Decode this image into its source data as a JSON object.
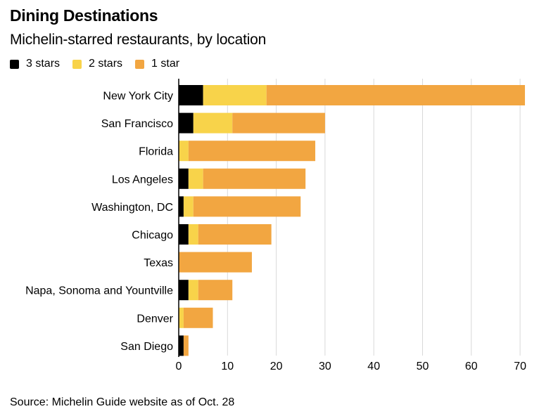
{
  "title": "Dining Destinations",
  "subtitle": "Michelin-starred restaurants, by location",
  "source": "Source: Michelin Guide website as of Oct. 28",
  "chart_data": {
    "type": "bar",
    "orientation": "horizontal",
    "stacked": true,
    "categories": [
      "New York City",
      "San Francisco",
      "Florida",
      "Los Angeles",
      "Washington, DC",
      "Chicago",
      "Texas",
      "Napa, Sonoma and Yountville",
      "Denver",
      "San Diego"
    ],
    "series": [
      {
        "name": "3 stars",
        "color": "#000000",
        "values": [
          5,
          3,
          0,
          2,
          1,
          2,
          0,
          2,
          0,
          1
        ]
      },
      {
        "name": "2 stars",
        "color": "#f8d34a",
        "values": [
          13,
          8,
          2,
          3,
          2,
          2,
          0,
          2,
          1,
          0
        ]
      },
      {
        "name": "1 star",
        "color": "#f2a641",
        "values": [
          53,
          19,
          26,
          21,
          22,
          15,
          15,
          7,
          6,
          1
        ]
      }
    ],
    "x_ticks": [
      0,
      10,
      20,
      30,
      40,
      50,
      60,
      70
    ],
    "xlim": [
      0,
      72
    ],
    "grid": true,
    "legend_position": "top-left"
  }
}
